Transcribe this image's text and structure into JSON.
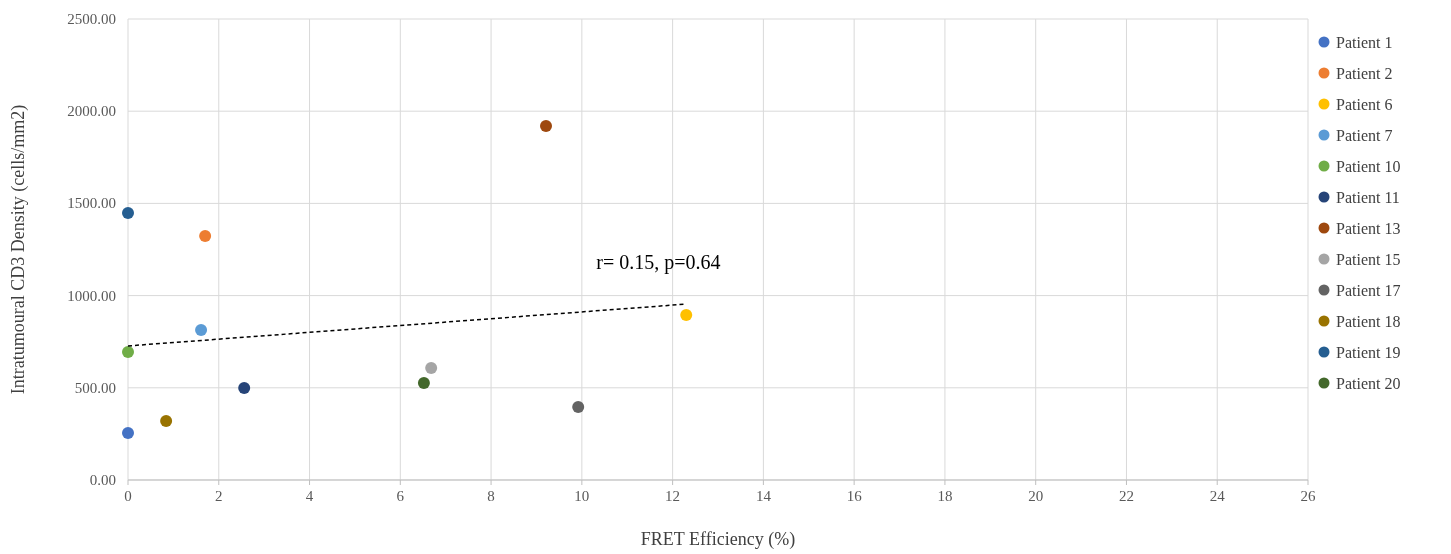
{
  "chart_data": {
    "type": "scatter",
    "xlabel": "FRET Efficiency (%)",
    "ylabel": "Intratumoural CD3 Density (cells/mm2)",
    "xlim": [
      0,
      26
    ],
    "xticks": [
      0,
      2,
      4,
      6,
      8,
      10,
      12,
      14,
      16,
      18,
      20,
      22,
      24,
      26
    ],
    "ylim": [
      0,
      2500
    ],
    "yticks": [
      {
        "value": 0,
        "label": "0.00"
      },
      {
        "value": 500,
        "label": "500.00"
      },
      {
        "value": 1000,
        "label": "1000.00"
      },
      {
        "value": 1500,
        "label": "1500.00"
      },
      {
        "value": 2000,
        "label": "2000.00"
      },
      {
        "value": 2500,
        "label": "2500.00"
      }
    ],
    "grid": true,
    "legend": "right",
    "marker": "circle",
    "annotations": [
      "r= 0.15, p=0.64"
    ],
    "series": [
      {
        "name": "Patient 1",
        "color": "#4472c4",
        "x": [
          0
        ],
        "values": [
          255
        ]
      },
      {
        "name": "Patient 2",
        "color": "#ed7d31",
        "x": [
          1.7
        ],
        "values": [
          1323
        ]
      },
      {
        "name": "Patient 6",
        "color": "#ffc000",
        "x": [
          12.3
        ],
        "values": [
          895
        ]
      },
      {
        "name": "Patient 7",
        "color": "#5b9bd5",
        "x": [
          1.61
        ],
        "values": [
          813
        ]
      },
      {
        "name": "Patient 10",
        "color": "#70ad47",
        "x": [
          0
        ],
        "values": [
          694
        ]
      },
      {
        "name": "Patient 11",
        "color": "#264478",
        "x": [
          2.56
        ],
        "values": [
          499
        ]
      },
      {
        "name": "Patient 13",
        "color": "#9e480e",
        "x": [
          9.21
        ],
        "values": [
          1920
        ]
      },
      {
        "name": "Patient 15",
        "color": "#a5a5a5",
        "x": [
          6.68
        ],
        "values": [
          607
        ]
      },
      {
        "name": "Patient 17",
        "color": "#636363",
        "x": [
          9.92
        ],
        "values": [
          396
        ]
      },
      {
        "name": "Patient 18",
        "color": "#997300",
        "x": [
          0.84
        ],
        "values": [
          320
        ]
      },
      {
        "name": "Patient 19",
        "color": "#255e91",
        "x": [
          0
        ],
        "values": [
          1448
        ]
      },
      {
        "name": "Patient 20",
        "color": "#43682b",
        "x": [
          6.52
        ],
        "values": [
          526
        ]
      },
      {
        "type": "line",
        "color": "#000000",
        "line_style": "dashed",
        "marker": "none",
        "x": [
          0,
          12.3
        ],
        "values": [
          727,
          954
        ]
      }
    ]
  }
}
